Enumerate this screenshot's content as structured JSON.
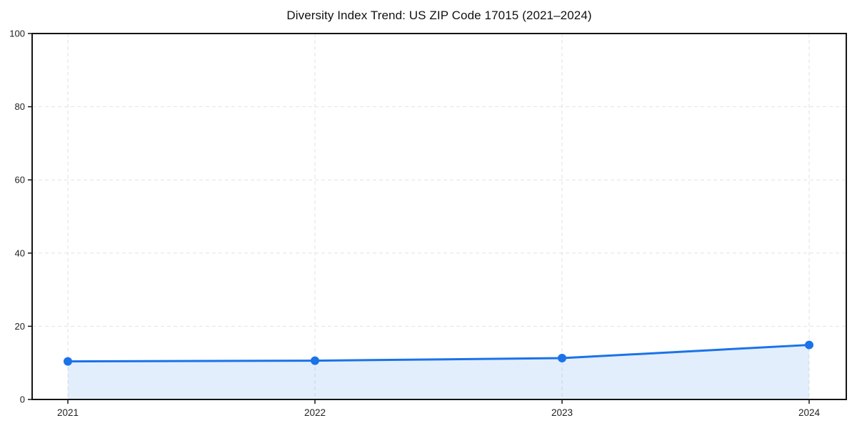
{
  "page": {
    "background_color": "#ffffff"
  },
  "chart_data": {
    "type": "area",
    "title": "Diversity Index Trend: US ZIP Code 17015 (2021–2024)",
    "series_name": "Diversity Index",
    "categories": [
      "2021",
      "2022",
      "2023",
      "2024"
    ],
    "x": [
      2021,
      2022,
      2023,
      2024
    ],
    "values": [
      10.4,
      10.6,
      11.3,
      14.9
    ],
    "xlabel": "",
    "ylabel": "",
    "ylim": [
      0,
      100
    ],
    "yticks": [
      0,
      20,
      40,
      60,
      80,
      100
    ],
    "ytick_labels": [
      "0",
      "20",
      "40",
      "60",
      "80",
      "100"
    ],
    "grid": true,
    "grid_style": "dashed",
    "legend_position": "none",
    "line_color": "#1a73e8",
    "marker_color": "#1a73e8",
    "fill_color": "#e8f0fe",
    "fill_opacity": 0.12,
    "grid_color": "#e2e2e2",
    "axis_color": "#141414",
    "text_color": "#1f1f1f"
  }
}
